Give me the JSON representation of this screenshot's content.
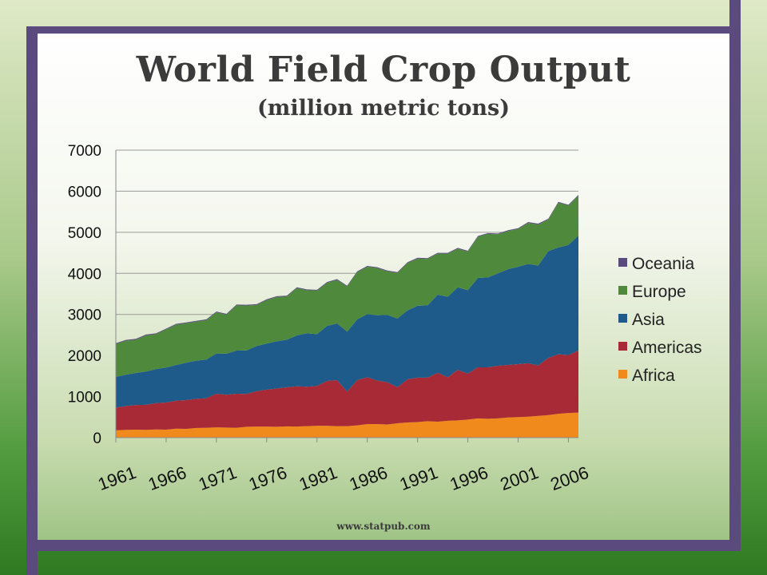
{
  "slide": {
    "title": "World Field Crop Output",
    "subtitle": "(million metric tons)",
    "footer": "www.statpub.com"
  },
  "chart_data": {
    "type": "area",
    "stacked": true,
    "title": "World Field Crop Output",
    "subtitle": "(million metric tons)",
    "xlabel": "",
    "ylabel": "",
    "x": [
      1961,
      1962,
      1963,
      1964,
      1965,
      1966,
      1967,
      1968,
      1969,
      1970,
      1971,
      1972,
      1973,
      1974,
      1975,
      1976,
      1977,
      1978,
      1979,
      1980,
      1981,
      1982,
      1983,
      1984,
      1985,
      1986,
      1987,
      1988,
      1989,
      1990,
      1991,
      1992,
      1993,
      1994,
      1995,
      1996,
      1997,
      1998,
      1999,
      2000,
      2001,
      2002,
      2003,
      2004,
      2005,
      2006,
      2007
    ],
    "x_tick_labels": [
      "1961",
      "1966",
      "1971",
      "1976",
      "1981",
      "1986",
      "1991",
      "1996",
      "2001",
      "2006"
    ],
    "ylim": [
      0,
      7000
    ],
    "y_ticks": [
      0,
      1000,
      2000,
      3000,
      4000,
      5000,
      6000,
      7000
    ],
    "grid": true,
    "legend_position": "right",
    "series": [
      {
        "name": "Africa",
        "color": "#f08a1c",
        "values": [
          180,
          190,
          195,
          190,
          200,
          195,
          220,
          215,
          235,
          240,
          250,
          245,
          240,
          265,
          270,
          270,
          265,
          275,
          270,
          280,
          290,
          290,
          280,
          280,
          300,
          330,
          330,
          320,
          350,
          370,
          380,
          400,
          390,
          410,
          420,
          440,
          470,
          460,
          470,
          490,
          500,
          510,
          530,
          550,
          580,
          600,
          610
        ]
      },
      {
        "name": "Americas",
        "color": "#a82a36",
        "values": [
          550,
          580,
          600,
          610,
          640,
          660,
          680,
          700,
          710,
          720,
          820,
          800,
          830,
          800,
          860,
          900,
          930,
          950,
          980,
          960,
          970,
          1090,
          1120,
          840,
          1100,
          1140,
          1060,
          1030,
          880,
          1050,
          1080,
          1060,
          1190,
          1060,
          1230,
          1120,
          1240,
          1250,
          1280,
          1280,
          1290,
          1300,
          1230,
          1390,
          1450,
          1410,
          1510
        ]
      },
      {
        "name": "Asia",
        "color": "#1f5b8a",
        "values": [
          750,
          760,
          780,
          810,
          830,
          850,
          870,
          910,
          930,
          940,
          980,
          1000,
          1050,
          1060,
          1100,
          1120,
          1150,
          1160,
          1240,
          1300,
          1260,
          1340,
          1380,
          1460,
          1480,
          1540,
          1590,
          1640,
          1670,
          1680,
          1750,
          1760,
          1900,
          1960,
          2010,
          2030,
          2180,
          2190,
          2250,
          2330,
          2370,
          2420,
          2430,
          2600,
          2600,
          2680,
          2800
        ]
      },
      {
        "name": "Europe",
        "color": "#4f8a3c",
        "values": [
          800,
          830,
          810,
          880,
          850,
          930,
          980,
          960,
          950,
          960,
          1000,
          950,
          1100,
          1090,
          1000,
          1060,
          1080,
          1050,
          1150,
          1050,
          1060,
          1050,
          1060,
          1100,
          1150,
          1150,
          1150,
          1060,
          1110,
          1150,
          1150,
          1130,
          1000,
          1050,
          940,
          940,
          1000,
          1060,
          950,
          930,
          920,
          1000,
          1000,
          770,
          1090,
          960,
          970
        ]
      },
      {
        "name": "Oceania",
        "color": "#5a4a7e",
        "values": [
          20,
          20,
          20,
          20,
          20,
          20,
          20,
          20,
          20,
          20,
          20,
          20,
          20,
          20,
          20,
          20,
          20,
          20,
          20,
          20,
          20,
          20,
          20,
          20,
          20,
          20,
          20,
          20,
          20,
          20,
          20,
          20,
          20,
          20,
          20,
          20,
          20,
          20,
          20,
          20,
          20,
          20,
          20,
          20,
          20,
          20,
          20
        ]
      }
    ]
  }
}
